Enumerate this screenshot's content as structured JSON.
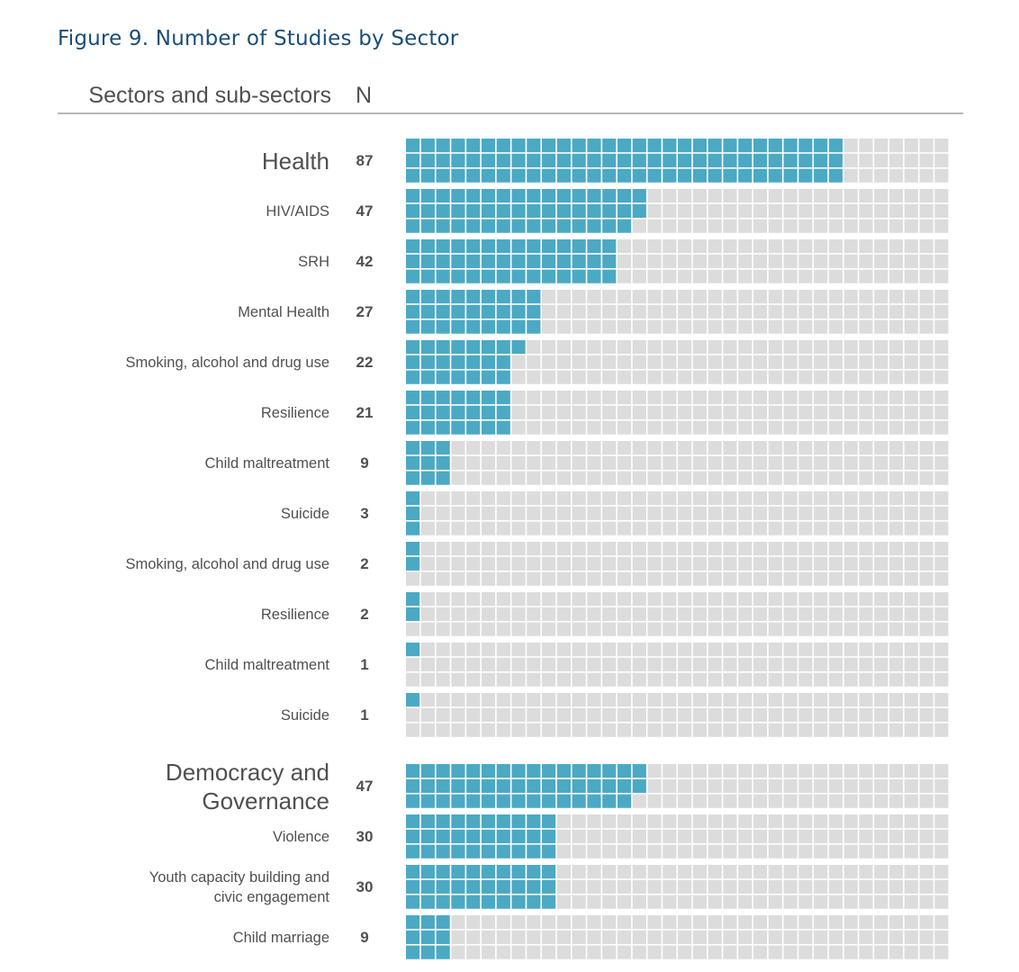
{
  "figure_title": "Figure 9. Number of Studies by Sector",
  "header": {
    "label_column": "Sectors and sub-sectors",
    "n_column": "N"
  },
  "colors": {
    "filled": "#4ba9c4",
    "empty": "#dcdcdc",
    "text": "#505050",
    "title": "#1b4d78"
  },
  "chart_data": {
    "type": "waffle",
    "title": "Figure 9. Number of Studies by Sector",
    "cells_per_row": 36,
    "rows_per_item": 3,
    "categories": [
      {
        "label": "Health",
        "n": 87,
        "level": "sector"
      },
      {
        "label": "HIV/AIDS",
        "n": 47,
        "level": "sub"
      },
      {
        "label": "SRH",
        "n": 42,
        "level": "sub"
      },
      {
        "label": "Mental Health",
        "n": 27,
        "level": "sub"
      },
      {
        "label": "Smoking, alcohol and drug use",
        "n": 22,
        "level": "sub"
      },
      {
        "label": "Resilience",
        "n": 21,
        "level": "sub"
      },
      {
        "label": "Child maltreatment",
        "n": 9,
        "level": "sub"
      },
      {
        "label": "Suicide",
        "n": 3,
        "level": "sub"
      },
      {
        "label": "Smoking, alcohol and drug use",
        "n": 2,
        "level": "sub"
      },
      {
        "label": "Resilience",
        "n": 2,
        "level": "sub"
      },
      {
        "label": "Child maltreatment",
        "n": 1,
        "level": "sub"
      },
      {
        "label": "Suicide",
        "n": 1,
        "level": "sub"
      },
      {
        "label": "Democracy and Governance",
        "n": 47,
        "level": "sector"
      },
      {
        "label": "Violence",
        "n": 30,
        "level": "sub"
      },
      {
        "label": "Youth capacity building and civic engagement",
        "n": 30,
        "level": "sub"
      },
      {
        "label": "Child marriage",
        "n": 9,
        "level": "sub"
      }
    ]
  }
}
